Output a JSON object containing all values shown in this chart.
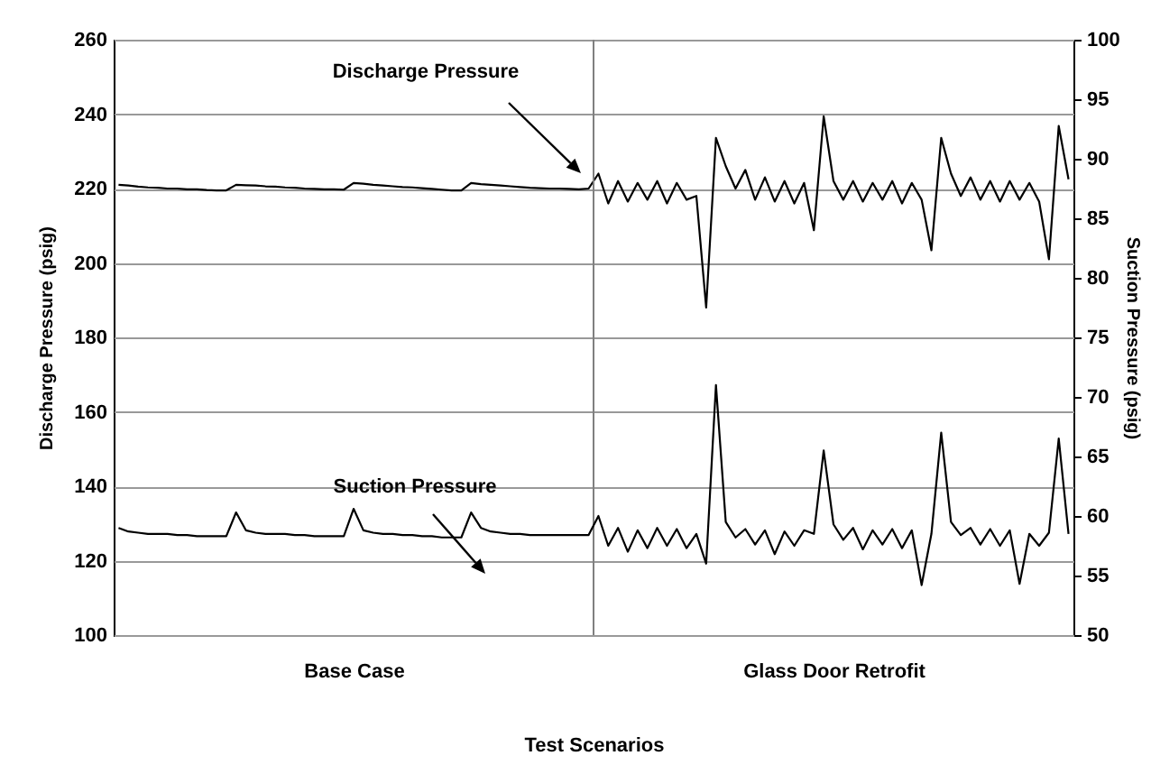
{
  "chart_data": {
    "type": "line",
    "xlabel": "Test Scenarios",
    "ylabel": "Discharge Pressure (psig)",
    "y2label": "Suction Pressure (psig)",
    "categories": [
      null,
      null,
      null,
      null,
      null,
      null,
      null,
      null,
      null,
      null,
      null,
      null,
      null,
      null,
      null,
      null,
      null,
      null,
      null,
      null,
      null,
      null,
      null,
      null,
      "Base Case",
      null,
      null,
      null,
      null,
      null,
      null,
      null,
      null,
      null,
      null,
      null,
      null,
      null,
      null,
      null,
      null,
      null,
      null,
      null,
      null,
      null,
      null,
      null,
      null,
      null,
      null,
      null,
      null,
      null,
      null,
      null,
      null,
      null,
      null,
      null,
      null,
      null,
      null,
      null,
      null,
      null,
      null,
      null,
      null,
      null,
      null,
      null,
      null,
      "Glass Door Retrofit",
      null,
      null,
      null,
      null,
      null,
      null,
      null,
      null,
      null,
      null,
      null,
      null,
      null,
      null,
      null,
      null,
      null,
      null,
      null,
      null,
      null,
      null,
      null,
      null
    ],
    "ylim": [
      100,
      260
    ],
    "yticks": [
      100,
      120,
      140,
      160,
      180,
      200,
      220,
      240,
      260
    ],
    "y2lim": [
      50,
      100
    ],
    "y2ticks": [
      50,
      55,
      60,
      65,
      70,
      75,
      80,
      85,
      90,
      95,
      100
    ],
    "grid": "y",
    "marker": "none",
    "line_style": "solid",
    "series": [
      {
        "name": "Discharge Pressure",
        "color": "#000000",
        "values": [
          221,
          220.8,
          220.5,
          220.3,
          220.2,
          220,
          220,
          219.8,
          219.8,
          219.6,
          219.5,
          219.5,
          221,
          220.9,
          220.8,
          220.6,
          220.5,
          220.3,
          220.2,
          220,
          219.9,
          219.8,
          219.8,
          219.7,
          221.5,
          221.3,
          221,
          220.8,
          220.6,
          220.4,
          220.3,
          220.1,
          219.9,
          219.7,
          219.5,
          219.5,
          221.5,
          221.2,
          221,
          220.8,
          220.6,
          220.4,
          220.2,
          220.1,
          220,
          220,
          219.9,
          219.8,
          220,
          224,
          216,
          222,
          216.5,
          221.5,
          217,
          222,
          216,
          221.5,
          217,
          218,
          188,
          233.6,
          226,
          220,
          225,
          217,
          223,
          216.5,
          222,
          216,
          221.5,
          208.8,
          239.4,
          222,
          217,
          222,
          216.5,
          221.5,
          217,
          222,
          216,
          221.5,
          217,
          203.4,
          233.6,
          224,
          218,
          223,
          217,
          222,
          216.5,
          222,
          217,
          221.5,
          216.5,
          201,
          236.8,
          222.5
        ]
      },
      {
        "name": "Suction Pressure",
        "color": "#000000",
        "axis": "y2",
        "values": [
          59,
          58.7,
          58.6,
          58.5,
          58.5,
          58.5,
          58.4,
          58.4,
          58.3,
          58.3,
          58.3,
          58.3,
          60.3,
          58.8,
          58.6,
          58.5,
          58.5,
          58.5,
          58.4,
          58.4,
          58.3,
          58.3,
          58.3,
          58.3,
          60.6,
          58.8,
          58.6,
          58.5,
          58.5,
          58.4,
          58.4,
          58.3,
          58.3,
          58.2,
          58.2,
          58.2,
          60.3,
          59,
          58.7,
          58.6,
          58.5,
          58.5,
          58.4,
          58.4,
          58.4,
          58.4,
          58.4,
          58.4,
          58.4,
          60,
          57.5,
          59,
          57,
          58.8,
          57.3,
          59,
          57.5,
          58.9,
          57.3,
          58.5,
          56,
          71,
          59.5,
          58.2,
          58.9,
          57.6,
          58.8,
          56.8,
          58.7,
          57.5,
          58.8,
          58.5,
          65.5,
          59.3,
          58,
          59,
          57.2,
          58.8,
          57.6,
          58.9,
          57.3,
          58.8,
          54.2,
          58.5,
          67,
          59.5,
          58.4,
          59,
          57.6,
          58.9,
          57.5,
          58.8,
          54.3,
          58.5,
          57.5,
          58.6,
          66.5,
          58.5
        ]
      }
    ]
  }
}
